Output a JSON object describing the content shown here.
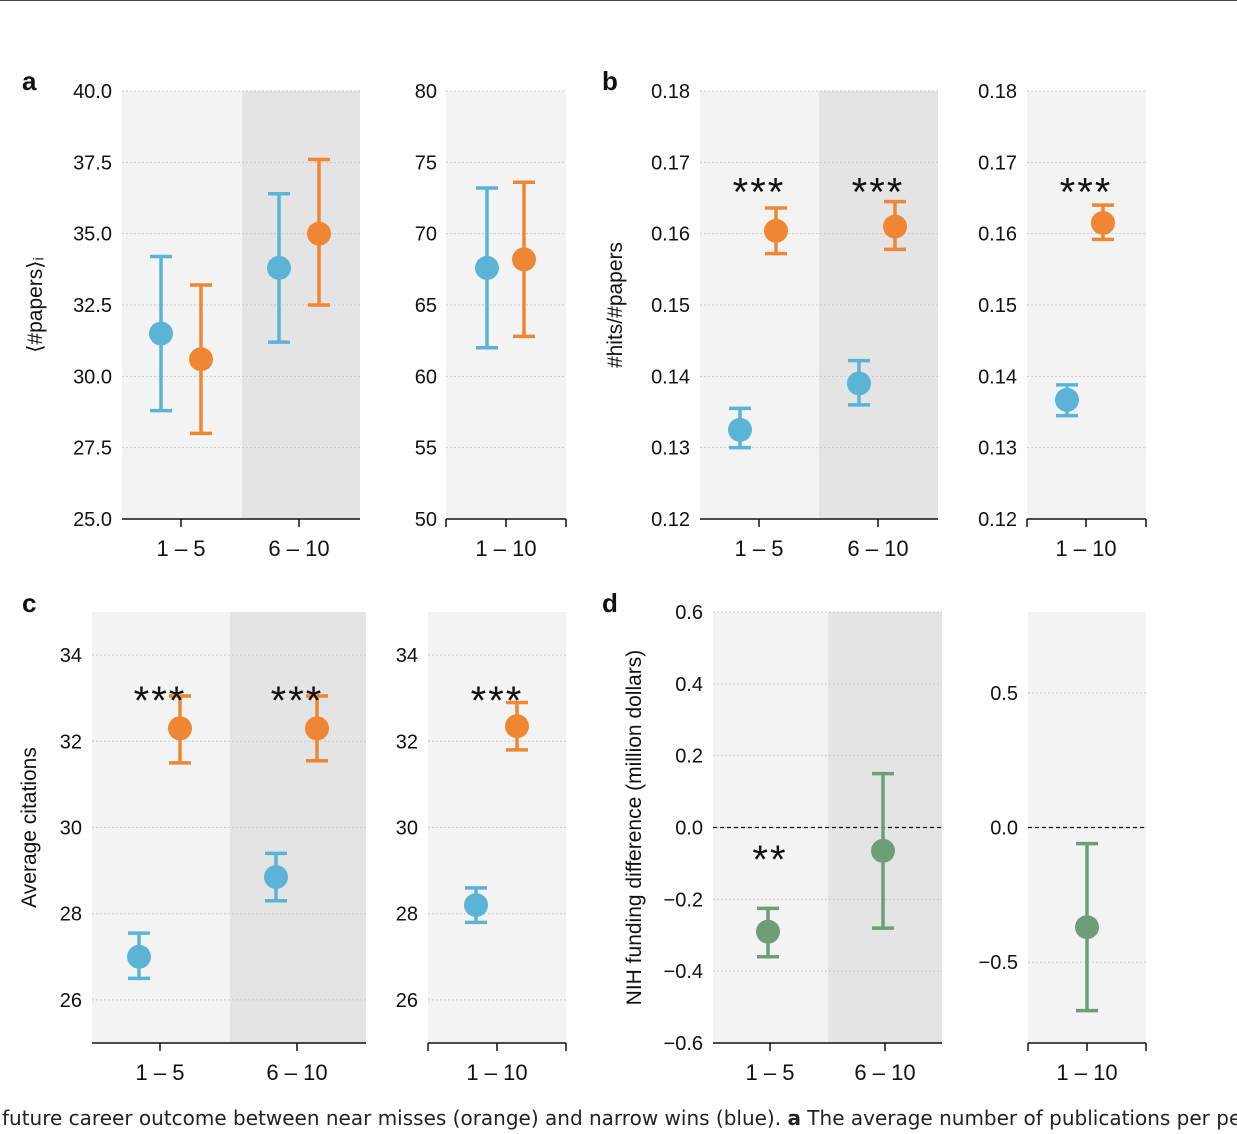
{
  "caption": {
    "pre": "future career outcome between near misses (orange) and narrow wins (blue). ",
    "bold": "a",
    "post": " The average number of publications per pers"
  },
  "colors": {
    "orange": "#ee8633",
    "blue": "#5bb4d6",
    "green": "#6d9e78",
    "shade_light": "#f3f3f3",
    "shade_dark": "#e4e4e4"
  },
  "chart_data": [
    {
      "panel": "a",
      "type": "scatter",
      "error_bars": true,
      "ylabel": "⟨#papers⟩ᵢ",
      "ylim": [
        25.0,
        40.0
      ],
      "yticks": [
        "25.0",
        "27.5",
        "30.0",
        "32.5",
        "35.0",
        "37.5",
        "40.0"
      ],
      "categories": [
        "1 – 5",
        "6 – 10"
      ],
      "series": [
        {
          "color": "blue",
          "values": [
            31.5,
            33.8
          ],
          "err_low": [
            28.8,
            31.2
          ],
          "err_high": [
            34.2,
            36.4
          ]
        },
        {
          "color": "orange",
          "values": [
            30.6,
            35.0
          ],
          "err_low": [
            28.0,
            32.5
          ],
          "err_high": [
            33.2,
            37.6
          ]
        }
      ],
      "annotations": [
        "",
        ""
      ]
    },
    {
      "panel": "",
      "type": "scatter",
      "error_bars": true,
      "ylabel": "",
      "ylim": [
        50,
        80
      ],
      "yticks": [
        "50",
        "55",
        "60",
        "65",
        "70",
        "75",
        "80"
      ],
      "categories": [
        "1 – 10"
      ],
      "series": [
        {
          "color": "blue",
          "values": [
            67.6
          ],
          "err_low": [
            62.0
          ],
          "err_high": [
            73.2
          ]
        },
        {
          "color": "orange",
          "values": [
            68.2
          ],
          "err_low": [
            62.8
          ],
          "err_high": [
            73.6
          ]
        }
      ],
      "annotations": [
        ""
      ]
    },
    {
      "panel": "b",
      "type": "scatter",
      "error_bars": true,
      "ylabel": "#hits/#papers",
      "ylim": [
        0.12,
        0.18
      ],
      "yticks": [
        "0.12",
        "0.13",
        "0.14",
        "0.15",
        "0.16",
        "0.17",
        "0.18"
      ],
      "categories": [
        "1 – 5",
        "6 – 10"
      ],
      "series": [
        {
          "color": "blue",
          "values": [
            0.1325,
            0.139
          ],
          "err_low": [
            0.13,
            0.136
          ],
          "err_high": [
            0.1355,
            0.1422
          ]
        },
        {
          "color": "orange",
          "values": [
            0.1604,
            0.161
          ],
          "err_low": [
            0.1572,
            0.1578
          ],
          "err_high": [
            0.1636,
            0.1645
          ]
        }
      ],
      "annotations": [
        "***",
        "***"
      ]
    },
    {
      "panel": "",
      "type": "scatter",
      "error_bars": true,
      "ylabel": "",
      "ylim": [
        0.12,
        0.18
      ],
      "yticks": [
        "0.12",
        "0.13",
        "0.14",
        "0.15",
        "0.16",
        "0.17",
        "0.18"
      ],
      "categories": [
        "1 – 10"
      ],
      "series": [
        {
          "color": "blue",
          "values": [
            0.1367
          ],
          "err_low": [
            0.1345
          ],
          "err_high": [
            0.1388
          ]
        },
        {
          "color": "orange",
          "values": [
            0.1615
          ],
          "err_low": [
            0.1592
          ],
          "err_high": [
            0.164
          ]
        }
      ],
      "annotations": [
        "***"
      ]
    },
    {
      "panel": "c",
      "type": "scatter",
      "error_bars": true,
      "ylabel": "Average citations",
      "ylim": [
        25.0,
        35.0
      ],
      "yticks": [
        "26",
        "28",
        "30",
        "32",
        "34"
      ],
      "categories": [
        "1 – 5",
        "6 – 10"
      ],
      "series": [
        {
          "color": "blue",
          "values": [
            27.0,
            28.85
          ],
          "err_low": [
            26.5,
            28.3
          ],
          "err_high": [
            27.55,
            29.4
          ]
        },
        {
          "color": "orange",
          "values": [
            32.3,
            32.3
          ],
          "err_low": [
            31.5,
            31.55
          ],
          "err_high": [
            33.05,
            33.05
          ]
        }
      ],
      "annotations": [
        "***",
        "***"
      ]
    },
    {
      "panel": "",
      "type": "scatter",
      "error_bars": true,
      "ylabel": "",
      "ylim": [
        25.0,
        35.0
      ],
      "yticks": [
        "26",
        "28",
        "30",
        "32",
        "34"
      ],
      "categories": [
        "1 – 10"
      ],
      "series": [
        {
          "color": "blue",
          "values": [
            28.2
          ],
          "err_low": [
            27.8
          ],
          "err_high": [
            28.6
          ]
        },
        {
          "color": "orange",
          "values": [
            32.35
          ],
          "err_low": [
            31.8
          ],
          "err_high": [
            32.9
          ]
        }
      ],
      "annotations": [
        "***"
      ]
    },
    {
      "panel": "d",
      "type": "scatter",
      "error_bars": true,
      "ylabel": "NIH funding difference (million dollars)",
      "ylim": [
        -0.6,
        0.6
      ],
      "yticks": [
        "−0.6",
        "−0.4",
        "−0.2",
        "0.0",
        "0.2",
        "0.4",
        "0.6"
      ],
      "categories": [
        "1 – 5",
        "6 – 10"
      ],
      "reference_line": 0.0,
      "series": [
        {
          "color": "green",
          "values": [
            -0.29,
            -0.065
          ],
          "err_low": [
            -0.36,
            -0.28
          ],
          "err_high": [
            -0.225,
            0.15
          ]
        }
      ],
      "annotations": [
        "**",
        ""
      ]
    },
    {
      "panel": "",
      "type": "scatter",
      "error_bars": true,
      "ylabel": "",
      "ylim": [
        -0.8,
        0.8
      ],
      "yticks": [
        "−0.5",
        "0.0",
        "0.5"
      ],
      "categories": [
        "1 – 10"
      ],
      "reference_line": 0.0,
      "series": [
        {
          "color": "green",
          "values": [
            -0.37
          ],
          "err_low": [
            -0.68
          ],
          "err_high": [
            -0.06
          ]
        }
      ],
      "annotations": [
        ""
      ]
    }
  ]
}
